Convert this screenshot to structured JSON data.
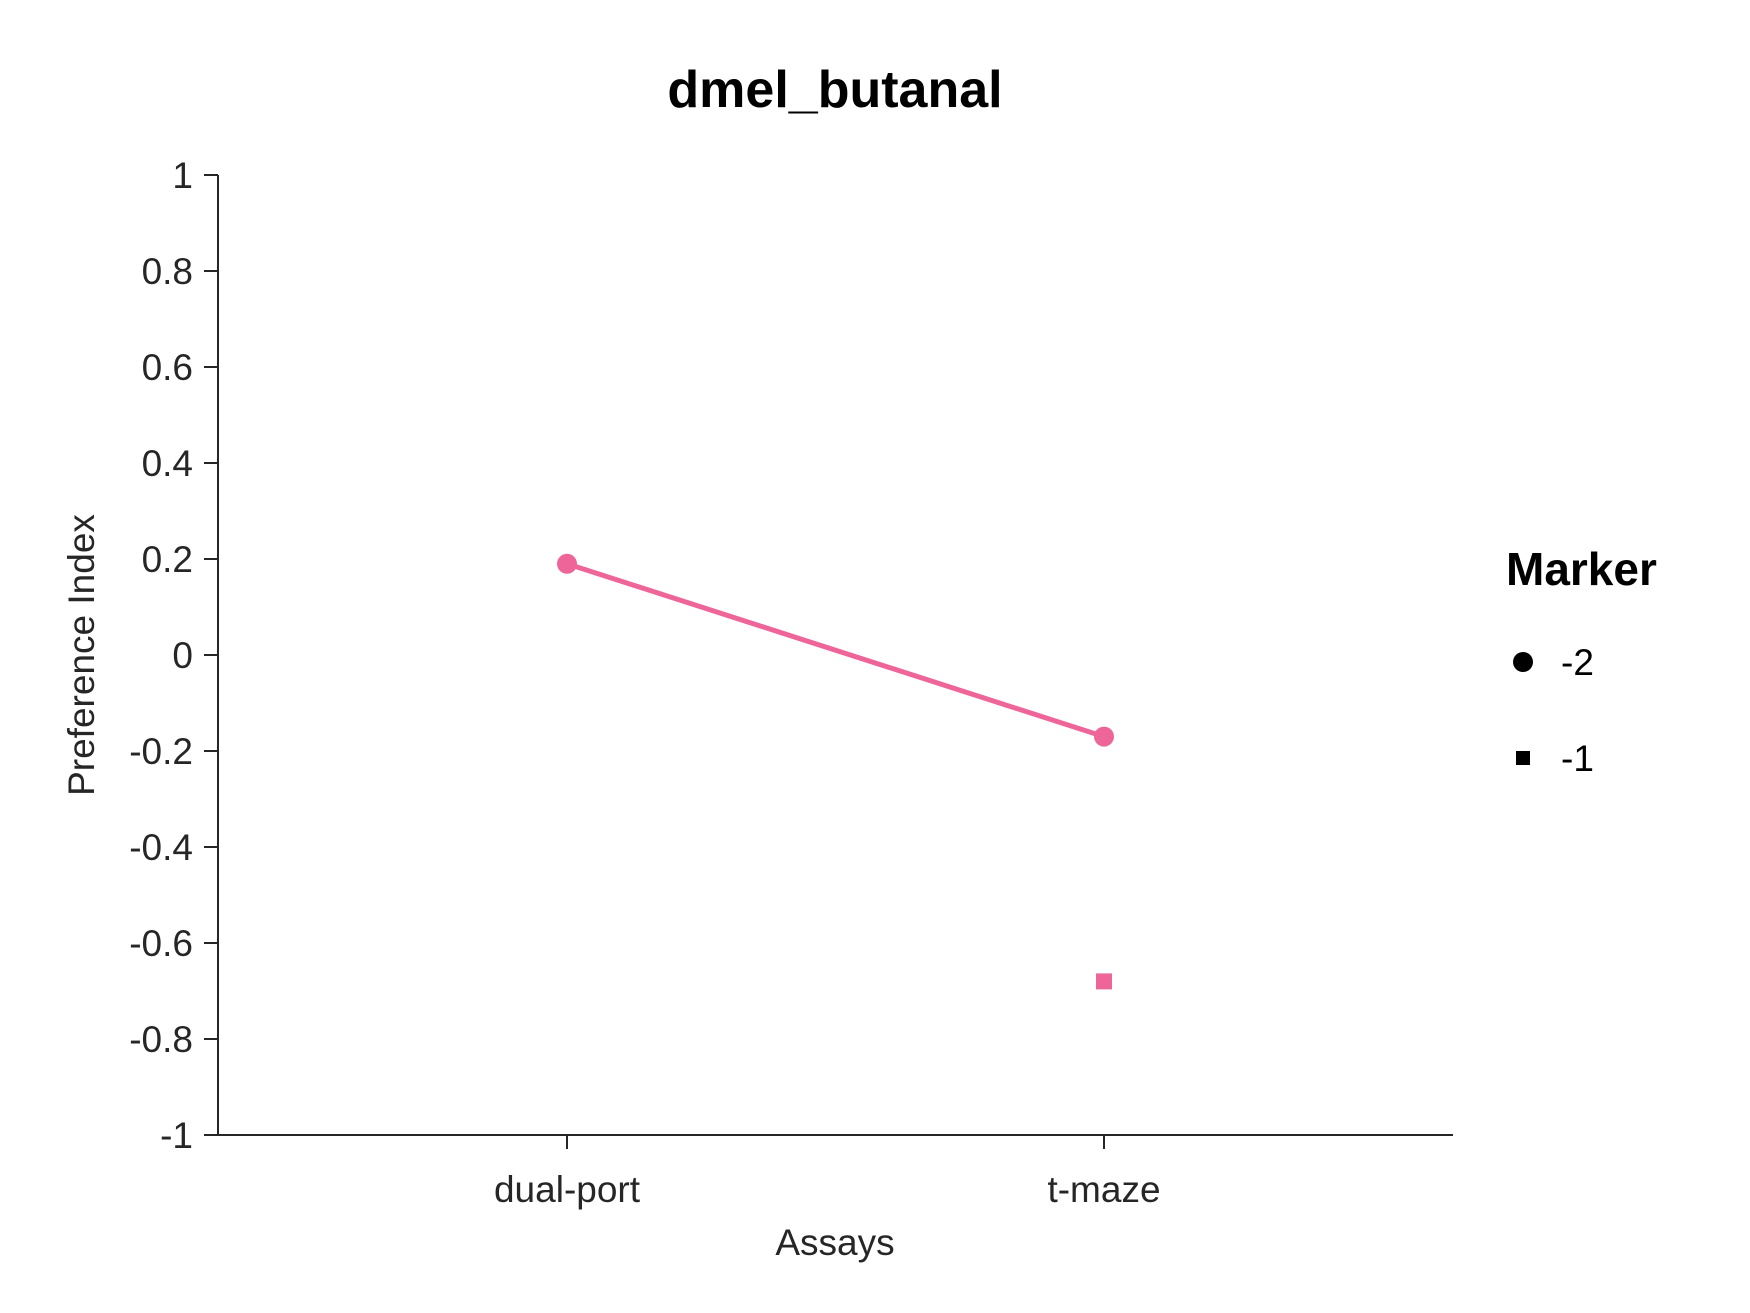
{
  "chart_data": {
    "type": "line",
    "title": "dmel_butanal",
    "xlabel": "Assays",
    "ylabel": "Preference Index",
    "categories": [
      "dual-port",
      "t-maze"
    ],
    "ylim": [
      -1,
      1
    ],
    "yticks": [
      "1",
      "0.8",
      "0.6",
      "0.4",
      "0.2",
      "0",
      "-0.2",
      "-0.4",
      "-0.6",
      "-0.8",
      "-1"
    ],
    "grid": false,
    "series": [
      {
        "marker": "circle",
        "connected": true,
        "color": "#ee6699",
        "values": [
          0.19,
          -0.17
        ]
      },
      {
        "marker": "square",
        "connected": false,
        "color": "#ee6699",
        "values": [
          null,
          -0.68
        ]
      }
    ],
    "legend": {
      "title": "Marker",
      "position": "right",
      "entries": [
        {
          "label": "-2",
          "marker": "circle"
        },
        {
          "label": "-1",
          "marker": "square"
        }
      ]
    }
  }
}
